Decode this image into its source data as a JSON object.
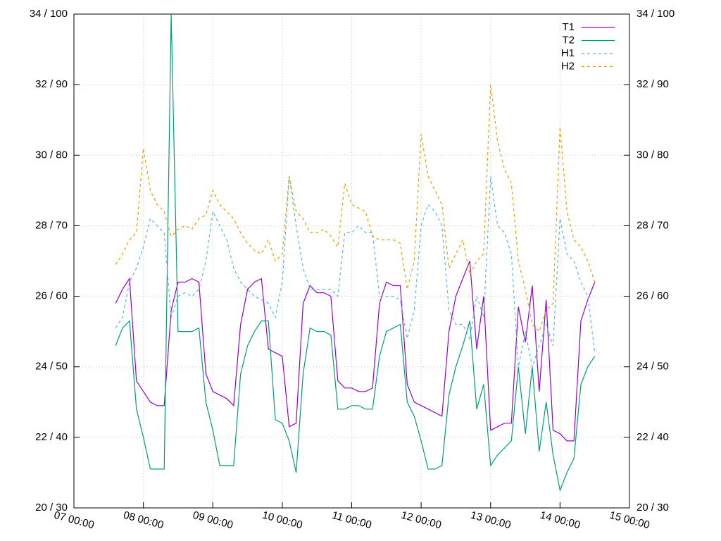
{
  "chart_data": {
    "type": "line",
    "x": [
      7.6,
      7.7,
      7.8,
      7.9,
      8.0,
      8.1,
      8.2,
      8.3,
      8.4,
      8.5,
      8.6,
      8.7,
      8.8,
      8.9,
      9.0,
      9.1,
      9.2,
      9.3,
      9.4,
      9.5,
      9.6,
      9.7,
      9.8,
      9.9,
      10.0,
      10.1,
      10.2,
      10.3,
      10.4,
      10.5,
      10.6,
      10.7,
      10.8,
      10.9,
      11.0,
      11.1,
      11.2,
      11.3,
      11.4,
      11.5,
      11.6,
      11.7,
      11.8,
      11.9,
      12.0,
      12.1,
      12.2,
      12.3,
      12.4,
      12.5,
      12.6,
      12.7,
      12.8,
      12.9,
      13.0,
      13.1,
      13.2,
      13.3,
      13.4,
      13.5,
      13.6,
      13.7,
      13.8,
      13.9,
      14.0,
      14.1,
      14.2,
      14.3,
      14.4,
      14.5
    ],
    "series": [
      {
        "name": "T1",
        "color": "#9400d3",
        "dash": false,
        "values": [
          25.8,
          26.2,
          26.5,
          23.6,
          23.3,
          23.0,
          22.9,
          22.9,
          25.6,
          26.4,
          26.4,
          26.5,
          26.4,
          23.8,
          23.3,
          23.2,
          23.1,
          22.9,
          25.2,
          26.2,
          26.4,
          26.5,
          24.5,
          24.4,
          24.3,
          22.3,
          22.4,
          25.8,
          26.3,
          26.1,
          26.1,
          26.0,
          23.6,
          23.4,
          23.4,
          23.3,
          23.3,
          23.4,
          25.8,
          26.4,
          26.3,
          26.3,
          23.5,
          23.0,
          22.9,
          22.8,
          22.7,
          22.6,
          25.0,
          26.0,
          26.5,
          27.0,
          24.5,
          26.0,
          22.2,
          22.3,
          22.4,
          22.4,
          25.7,
          24.7,
          26.3,
          23.3,
          25.9,
          22.2,
          22.1,
          21.9,
          21.9,
          25.3,
          25.9,
          26.4
        ]
      },
      {
        "name": "T2",
        "color": "#009e73",
        "dash": false,
        "values": [
          24.6,
          25.1,
          25.3,
          22.8,
          22.0,
          21.1,
          21.1,
          21.1,
          34,
          25.0,
          25.0,
          25.0,
          25.1,
          23.0,
          22.2,
          21.2,
          21.2,
          21.2,
          23.8,
          24.6,
          25.0,
          25.3,
          25.3,
          22.5,
          22.4,
          21.9,
          21.0,
          23.8,
          25.1,
          25.0,
          25.0,
          24.9,
          22.8,
          22.8,
          22.9,
          22.9,
          22.8,
          22.8,
          24.3,
          25.0,
          25.1,
          25.2,
          23.0,
          22.6,
          21.9,
          21.1,
          21.1,
          21.2,
          23.2,
          24.0,
          24.6,
          25.3,
          22.8,
          23.5,
          21.2,
          21.5,
          21.7,
          21.9,
          24.0,
          22.1,
          24.0,
          21.6,
          23.0,
          21.5,
          20.5,
          21.0,
          21.4,
          23.5,
          24.0,
          24.3
        ]
      },
      {
        "name": "H1",
        "color": "#56b4e9",
        "dash": true,
        "axis": "y2",
        "values": [
          55.5,
          57,
          62,
          64,
          67,
          71,
          70,
          69,
          57,
          60,
          60.5,
          60,
          61,
          65,
          72,
          70,
          68,
          64,
          62,
          61,
          60,
          59.5,
          59,
          57,
          62,
          77,
          70,
          64,
          61,
          61,
          61,
          61,
          60,
          69,
          69,
          70,
          69,
          69,
          60,
          60,
          60,
          59.5,
          54,
          58,
          70,
          73,
          72,
          70,
          58,
          56,
          56,
          54,
          60,
          57,
          77,
          70,
          69,
          66,
          50,
          55,
          50,
          53,
          56,
          53,
          71,
          66,
          65,
          62,
          60,
          52
        ]
      },
      {
        "name": "H2",
        "color": "#e69f00",
        "dash": true,
        "axis": "y2",
        "values": [
          64.5,
          66,
          68,
          69,
          81,
          75,
          73,
          72,
          68.5,
          69.5,
          70,
          69.5,
          71,
          71.5,
          75,
          73,
          72,
          71,
          69,
          67.5,
          66.5,
          66,
          68,
          65,
          66,
          77,
          72,
          71,
          69,
          69,
          69.5,
          68.5,
          67,
          76,
          73,
          72.5,
          72,
          68.5,
          68,
          68,
          68,
          67.5,
          61,
          65,
          83,
          77,
          75,
          73,
          64,
          66,
          68,
          63,
          65,
          66,
          90,
          82,
          78,
          76,
          65,
          61,
          56,
          55,
          58,
          59,
          84,
          72,
          68,
          67,
          65,
          62
        ]
      }
    ],
    "xlim": [
      7,
      15
    ],
    "xticks": [
      {
        "value": 7,
        "label": "07 00:00"
      },
      {
        "value": 8,
        "label": "08 00:00"
      },
      {
        "value": 9,
        "label": "09 00:00"
      },
      {
        "value": 10,
        "label": "10 00:00"
      },
      {
        "value": 11,
        "label": "11 00:00"
      },
      {
        "value": 12,
        "label": "12 00:00"
      },
      {
        "value": 13,
        "label": "13 00:00"
      },
      {
        "value": 14,
        "label": "14 00:00"
      },
      {
        "value": 15,
        "label": "15 00:00"
      }
    ],
    "ylim": [
      20,
      34
    ],
    "yticks": [
      {
        "value": 20,
        "label": "20 / 30"
      },
      {
        "value": 22,
        "label": "22 / 40"
      },
      {
        "value": 24,
        "label": "24 / 50"
      },
      {
        "value": 26,
        "label": "26 / 60"
      },
      {
        "value": 28,
        "label": "28 / 70"
      },
      {
        "value": 30,
        "label": "30 / 80"
      },
      {
        "value": 32,
        "label": "32 / 90"
      },
      {
        "value": 34,
        "label": "34 / 100"
      }
    ],
    "y2lim": [
      30,
      100
    ],
    "y2ticks": [
      {
        "value": 30,
        "label": "20 / 30"
      },
      {
        "value": 40,
        "label": "22 / 40"
      },
      {
        "value": 50,
        "label": "24 / 50"
      },
      {
        "value": 60,
        "label": "26 / 60"
      },
      {
        "value": 70,
        "label": "28 / 70"
      },
      {
        "value": 80,
        "label": "30 / 80"
      },
      {
        "value": 90,
        "label": "32 / 90"
      },
      {
        "value": 100,
        "label": "34 / 100"
      }
    ],
    "grid": true,
    "legend": "top-right"
  }
}
